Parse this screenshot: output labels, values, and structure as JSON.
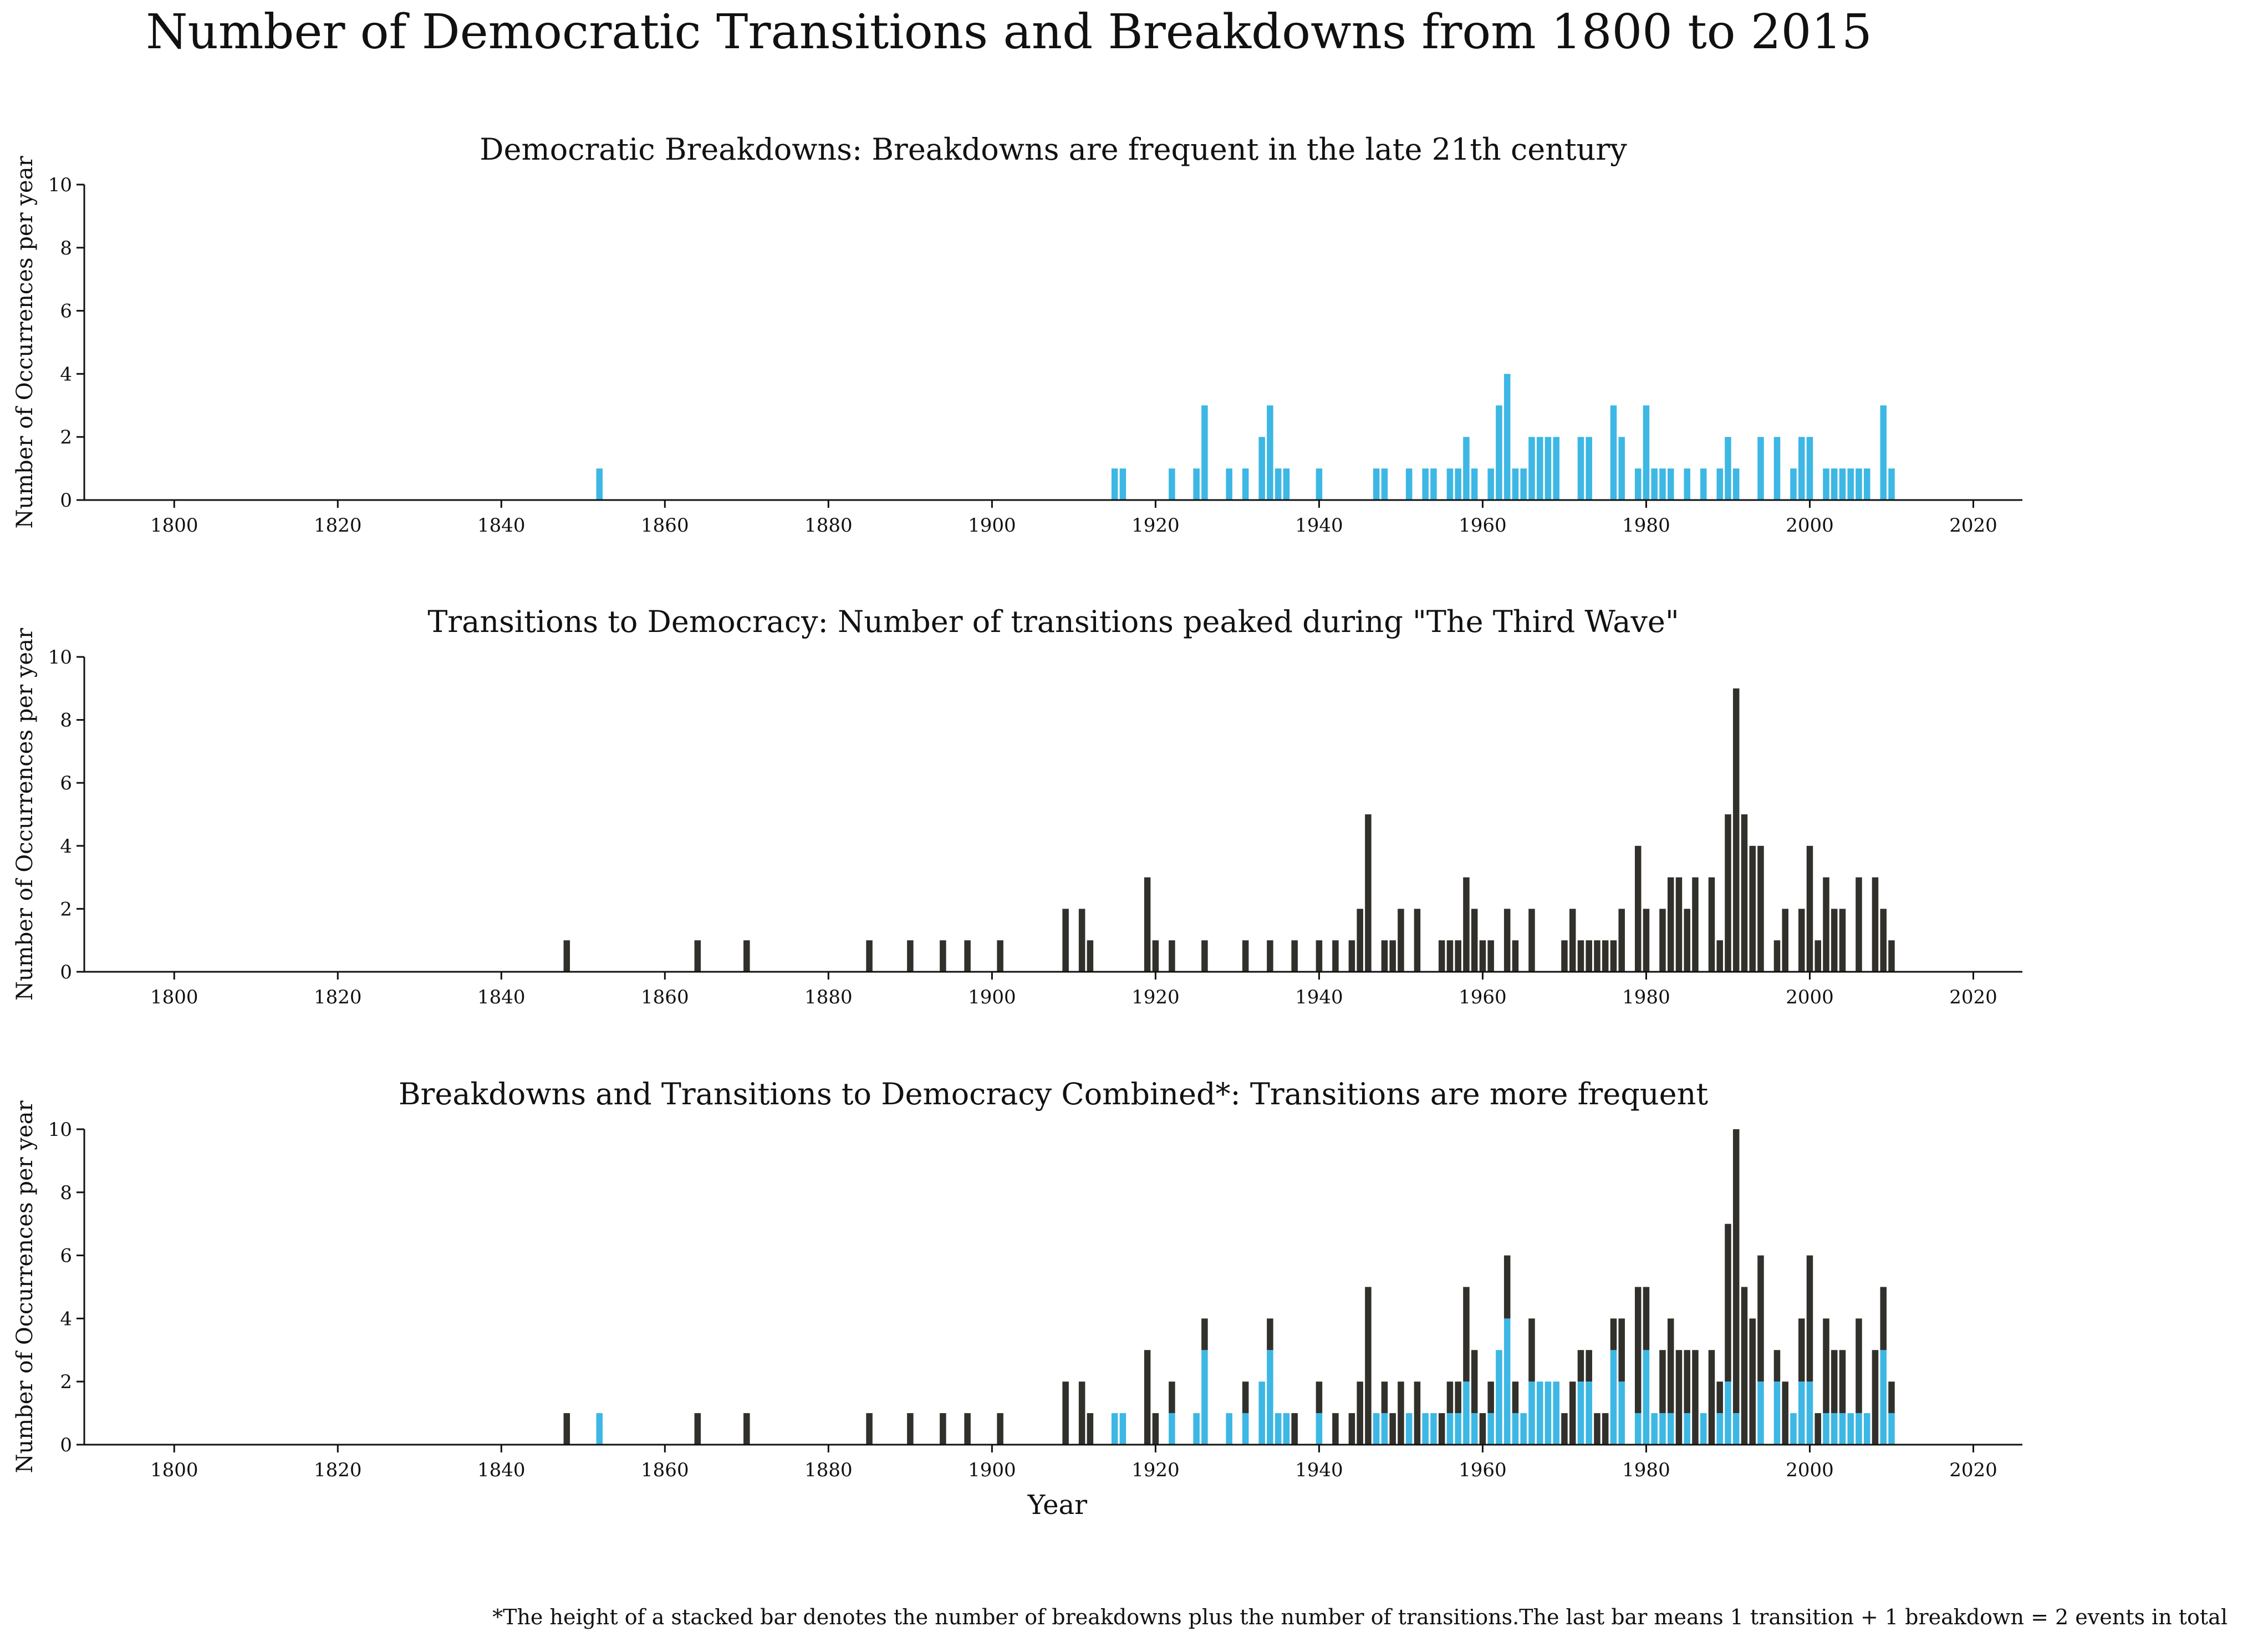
{
  "title": "Number of Democratic Transitions and Breakdowns from 1800 to 2015",
  "footnote": "*The height of a stacked bar denotes the number of breakdowns plus the number of transitions.The last bar means 1 transition + 1 breakdown = 2 events in total",
  "colors": {
    "breakdowns": "#3db7e4",
    "transitions": "#32302b",
    "axis": "#111111"
  },
  "chart_data": [
    {
      "type": "bar",
      "title": "Democratic Breakdowns: Breakdowns are frequent in the late 21th century",
      "ylabel": "Number of Occurrences per year",
      "xlabel": "",
      "xlim": [
        1789,
        2026
      ],
      "ylim": [
        0,
        10
      ],
      "xticks": [
        1800,
        1820,
        1840,
        1860,
        1880,
        1900,
        1920,
        1940,
        1960,
        1980,
        2000,
        2020
      ],
      "yticks": [
        0,
        2,
        4,
        6,
        8,
        10
      ],
      "series": [
        {
          "key": "breakdowns",
          "x": [
            1852,
            1915,
            1916,
            1922,
            1925,
            1926,
            1929,
            1931,
            1933,
            1934,
            1935,
            1936,
            1940,
            1947,
            1948,
            1951,
            1953,
            1954,
            1956,
            1957,
            1958,
            1959,
            1961,
            1962,
            1963,
            1964,
            1965,
            1966,
            1967,
            1968,
            1969,
            1972,
            1973,
            1976,
            1977,
            1979,
            1980,
            1981,
            1982,
            1983,
            1985,
            1987,
            1989,
            1990,
            1991,
            1994,
            1996,
            1998,
            1999,
            2000,
            2002,
            2003,
            2004,
            2005,
            2006,
            2007,
            2009,
            2010
          ],
          "values": [
            1,
            1,
            1,
            1,
            1,
            3,
            1,
            1,
            2,
            3,
            1,
            1,
            1,
            1,
            1,
            1,
            1,
            1,
            1,
            1,
            2,
            1,
            1,
            3,
            4,
            1,
            1,
            2,
            2,
            2,
            2,
            2,
            2,
            3,
            2,
            1,
            3,
            1,
            1,
            1,
            1,
            1,
            1,
            2,
            1,
            2,
            2,
            1,
            2,
            2,
            1,
            1,
            1,
            1,
            1,
            1,
            3,
            1
          ]
        }
      ]
    },
    {
      "type": "bar",
      "title": "Transitions to Democracy: Number of transitions peaked during \"The Third Wave\"",
      "ylabel": "Number of Occurrences per year",
      "xlabel": "",
      "xlim": [
        1789,
        2026
      ],
      "ylim": [
        0,
        10
      ],
      "xticks": [
        1800,
        1820,
        1840,
        1860,
        1880,
        1900,
        1920,
        1940,
        1960,
        1980,
        2000,
        2020
      ],
      "yticks": [
        0,
        2,
        4,
        6,
        8,
        10
      ],
      "series": [
        {
          "key": "transitions",
          "x": [
            1848,
            1864,
            1870,
            1885,
            1890,
            1894,
            1897,
            1901,
            1909,
            1911,
            1912,
            1919,
            1920,
            1922,
            1926,
            1931,
            1934,
            1937,
            1940,
            1942,
            1944,
            1945,
            1946,
            1948,
            1949,
            1950,
            1952,
            1955,
            1956,
            1957,
            1958,
            1959,
            1960,
            1961,
            1963,
            1964,
            1966,
            1970,
            1971,
            1972,
            1973,
            1974,
            1975,
            1976,
            1977,
            1979,
            1980,
            1982,
            1983,
            1984,
            1985,
            1986,
            1988,
            1989,
            1990,
            1991,
            1992,
            1993,
            1994,
            1996,
            1997,
            1999,
            2000,
            2001,
            2002,
            2003,
            2004,
            2006,
            2008,
            2009,
            2010
          ],
          "values": [
            1,
            1,
            1,
            1,
            1,
            1,
            1,
            1,
            2,
            2,
            1,
            3,
            1,
            1,
            1,
            1,
            1,
            1,
            1,
            1,
            1,
            2,
            5,
            1,
            1,
            2,
            2,
            1,
            1,
            1,
            3,
            2,
            1,
            1,
            2,
            1,
            2,
            1,
            2,
            1,
            1,
            1,
            1,
            1,
            2,
            4,
            2,
            2,
            3,
            3,
            2,
            3,
            3,
            1,
            5,
            9,
            5,
            4,
            4,
            1,
            2,
            2,
            4,
            1,
            3,
            2,
            2,
            3,
            3,
            2,
            1
          ]
        }
      ]
    },
    {
      "type": "bar",
      "stacked": true,
      "title": "Breakdowns and Transitions to Democracy Combined*: Transitions are more frequent",
      "ylabel": "Number of Occurrences per year",
      "xlabel": "Year",
      "xlim": [
        1789,
        2026
      ],
      "ylim": [
        0,
        10
      ],
      "xticks": [
        1800,
        1820,
        1840,
        1860,
        1880,
        1900,
        1920,
        1940,
        1960,
        1980,
        2000,
        2020
      ],
      "yticks": [
        0,
        2,
        4,
        6,
        8,
        10
      ],
      "stack_order": [
        "breakdowns",
        "transitions"
      ],
      "series_ref": [
        0,
        1
      ]
    }
  ]
}
